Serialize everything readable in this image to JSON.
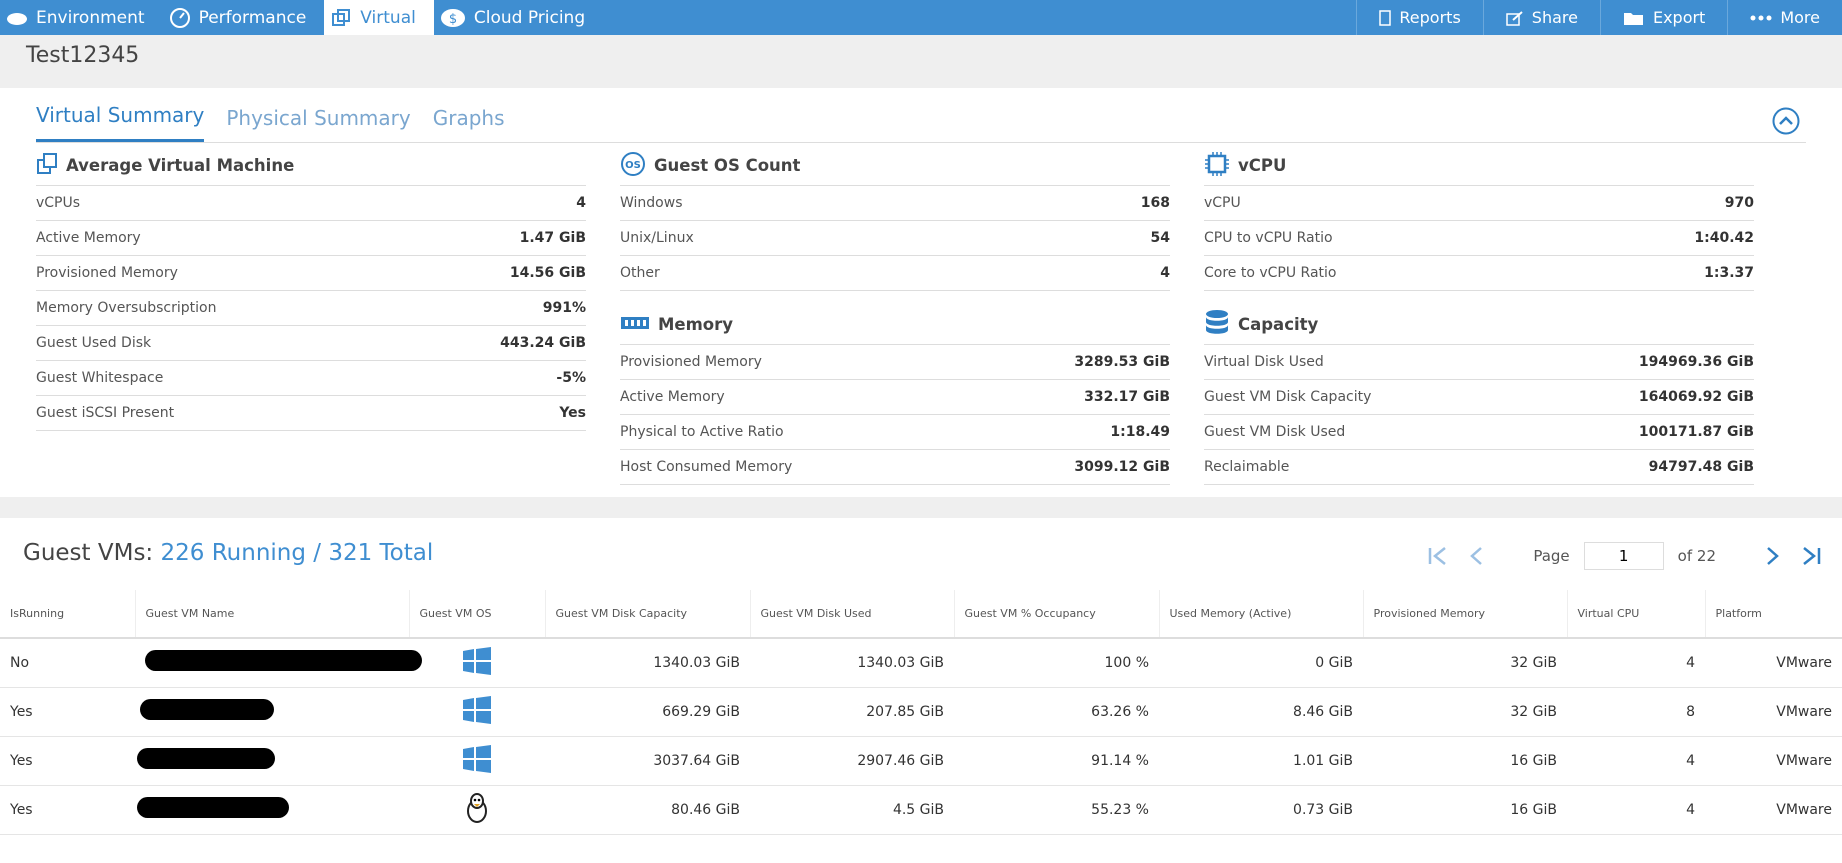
{
  "nav": {
    "tabs": [
      "Environment",
      "Performance",
      "Virtual",
      "Cloud Pricing"
    ],
    "actions": [
      "Reports",
      "Share",
      "Export",
      "More"
    ]
  },
  "page_title": "Test12345",
  "summary_tabs": [
    "Virtual Summary",
    "Physical Summary",
    "Graphs"
  ],
  "panels": [
    {
      "title": "Average Virtual Machine",
      "rows": [
        [
          "vCPUs",
          "4"
        ],
        [
          "Active Memory",
          "1.47 GiB"
        ],
        [
          "Provisioned Memory",
          "14.56 GiB"
        ],
        [
          "Memory Oversubscription",
          "991%"
        ],
        [
          "Guest Used Disk",
          "443.24 GiB"
        ],
        [
          "Guest Whitespace",
          "-5%"
        ],
        [
          "Guest iSCSI Present",
          "Yes"
        ]
      ]
    },
    {
      "title": "Guest OS Count",
      "icon_label": "OS",
      "rows": [
        [
          "Windows",
          "168"
        ],
        [
          "Unix/Linux",
          "54"
        ],
        [
          "Other",
          "4"
        ]
      ]
    },
    {
      "title": "Memory",
      "rows": [
        [
          "Provisioned Memory",
          "3289.53 GiB"
        ],
        [
          "Active Memory",
          "332.17 GiB"
        ],
        [
          "Physical to Active Ratio",
          "1:18.49"
        ],
        [
          "Host Consumed Memory",
          "3099.12 GiB"
        ]
      ]
    },
    {
      "title": "vCPU",
      "rows": [
        [
          "vCPU",
          "970"
        ],
        [
          "CPU to vCPU Ratio",
          "1:40.42"
        ],
        [
          "Core to vCPU Ratio",
          "1:3.37"
        ]
      ]
    },
    {
      "title": "Capacity",
      "rows": [
        [
          "Virtual Disk Used",
          "194969.36 GiB"
        ],
        [
          "Guest VM Disk Capacity",
          "164069.92 GiB"
        ],
        [
          "Guest VM Disk Used",
          "100171.87 GiB"
        ],
        [
          "Reclaimable",
          "94797.48 GiB"
        ]
      ]
    }
  ],
  "guest_vms": {
    "heading": "Guest VMs:",
    "status": "226 Running / 321 Total",
    "pager": {
      "label": "Page",
      "page": "1",
      "of": "of 22"
    },
    "columns": [
      "IsRunning",
      "Guest VM Name",
      "Guest VM OS",
      "Guest VM Disk Capacity",
      "Guest VM Disk Used",
      "Guest VM % Occupancy",
      "Used Memory (Active)",
      "Provisioned Memory",
      "Virtual CPU",
      "Platform"
    ],
    "rows": [
      [
        "No",
        "1340.03 GiB",
        "1340.03 GiB",
        "100 %",
        "0 GiB",
        "32 GiB",
        "4",
        "VMware"
      ],
      [
        "Yes",
        "669.29 GiB",
        "207.85 GiB",
        "63.26 %",
        "8.46 GiB",
        "32 GiB",
        "8",
        "VMware"
      ],
      [
        "Yes",
        "3037.64 GiB",
        "2907.46 GiB",
        "91.14 %",
        "1.01 GiB",
        "16 GiB",
        "4",
        "VMware"
      ],
      [
        "Yes",
        "80.46 GiB",
        "4.5 GiB",
        "55.23 %",
        "0.73 GiB",
        "16 GiB",
        "4",
        "VMware"
      ]
    ]
  }
}
